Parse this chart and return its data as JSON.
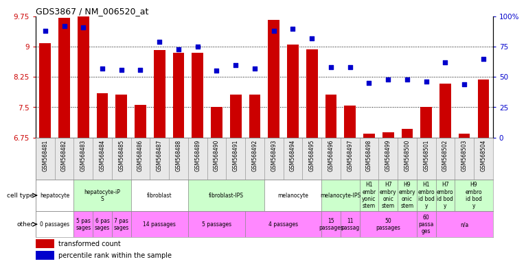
{
  "title": "GDS3867 / NM_006520_at",
  "gsm_labels": [
    "GSM568481",
    "GSM568482",
    "GSM568483",
    "GSM568484",
    "GSM568485",
    "GSM568486",
    "GSM568487",
    "GSM568488",
    "GSM568489",
    "GSM568490",
    "GSM568491",
    "GSM568492",
    "GSM568493",
    "GSM568494",
    "GSM568495",
    "GSM568496",
    "GSM568497",
    "GSM568498",
    "GSM568499",
    "GSM568500",
    "GSM568501",
    "GSM568502",
    "GSM568503",
    "GSM568504"
  ],
  "bar_values": [
    9.08,
    9.71,
    9.76,
    7.85,
    7.82,
    7.56,
    8.92,
    8.85,
    8.85,
    7.51,
    7.82,
    7.82,
    9.67,
    9.05,
    8.93,
    7.82,
    7.54,
    6.84,
    6.88,
    6.97,
    7.51,
    8.08,
    6.84,
    8.18
  ],
  "percentile_values": [
    88,
    92,
    91,
    57,
    56,
    56,
    79,
    73,
    75,
    55,
    60,
    57,
    88,
    90,
    82,
    58,
    58,
    45,
    48,
    48,
    46,
    62,
    44,
    65
  ],
  "ymin": 6.75,
  "ymax": 9.75,
  "yticks": [
    6.75,
    7.5,
    8.25,
    9.0,
    9.75
  ],
  "ytick_labels": [
    "6.75",
    "7.5",
    "8.25",
    "9",
    "9.75"
  ],
  "right_yticks": [
    0,
    25,
    50,
    75,
    100
  ],
  "right_ytick_labels": [
    "0",
    "25",
    "50",
    "75",
    "100%"
  ],
  "bar_color": "#cc0000",
  "dot_color": "#0000cc",
  "cell_type_groups": [
    {
      "label": "hepatocyte",
      "start": 0,
      "end": 1,
      "bg": "#ffffff"
    },
    {
      "label": "hepatocyte-iP\nS",
      "start": 2,
      "end": 4,
      "bg": "#ccffcc"
    },
    {
      "label": "fibroblast",
      "start": 5,
      "end": 7,
      "bg": "#ffffff"
    },
    {
      "label": "fibroblast-IPS",
      "start": 8,
      "end": 11,
      "bg": "#ccffcc"
    },
    {
      "label": "melanocyte",
      "start": 12,
      "end": 14,
      "bg": "#ffffff"
    },
    {
      "label": "melanocyte-IPS",
      "start": 15,
      "end": 16,
      "bg": "#ccffcc"
    },
    {
      "label": "H1\nembr\nyonic\nstem",
      "start": 17,
      "end": 17,
      "bg": "#ccffcc"
    },
    {
      "label": "H7\nembry\nonic\nstem",
      "start": 18,
      "end": 18,
      "bg": "#ccffcc"
    },
    {
      "label": "H9\nembry\nonic\nstem",
      "start": 19,
      "end": 19,
      "bg": "#ccffcc"
    },
    {
      "label": "H1\nembro\nid bod\ny",
      "start": 20,
      "end": 20,
      "bg": "#ccffcc"
    },
    {
      "label": "H7\nembro\nid bod\ny",
      "start": 21,
      "end": 21,
      "bg": "#ccffcc"
    },
    {
      "label": "H9\nembro\nid bod\ny",
      "start": 22,
      "end": 23,
      "bg": "#ccffcc"
    }
  ],
  "other_groups": [
    {
      "label": "0 passages",
      "start": 0,
      "end": 1,
      "bg": "#ffffff"
    },
    {
      "label": "5 pas\nsages",
      "start": 2,
      "end": 2,
      "bg": "#ff88ff"
    },
    {
      "label": "6 pas\nsages",
      "start": 3,
      "end": 3,
      "bg": "#ff88ff"
    },
    {
      "label": "7 pas\nsages",
      "start": 4,
      "end": 4,
      "bg": "#ff88ff"
    },
    {
      "label": "14 passages",
      "start": 5,
      "end": 7,
      "bg": "#ff88ff"
    },
    {
      "label": "5 passages",
      "start": 8,
      "end": 10,
      "bg": "#ff88ff"
    },
    {
      "label": "4 passages",
      "start": 11,
      "end": 14,
      "bg": "#ff88ff"
    },
    {
      "label": "15\npassages",
      "start": 15,
      "end": 15,
      "bg": "#ff88ff"
    },
    {
      "label": "11\npassag",
      "start": 16,
      "end": 16,
      "bg": "#ff88ff"
    },
    {
      "label": "50\npassages",
      "start": 17,
      "end": 19,
      "bg": "#ff88ff"
    },
    {
      "label": "60\npassa\nges",
      "start": 20,
      "end": 20,
      "bg": "#ff88ff"
    },
    {
      "label": "n/a",
      "start": 21,
      "end": 23,
      "bg": "#ff88ff"
    }
  ],
  "axis_label_color_left": "#cc0000",
  "axis_label_color_right": "#0000cc",
  "legend_items": [
    {
      "color": "#cc0000",
      "label": "transformed count"
    },
    {
      "color": "#0000cc",
      "label": "percentile rank within the sample"
    }
  ]
}
